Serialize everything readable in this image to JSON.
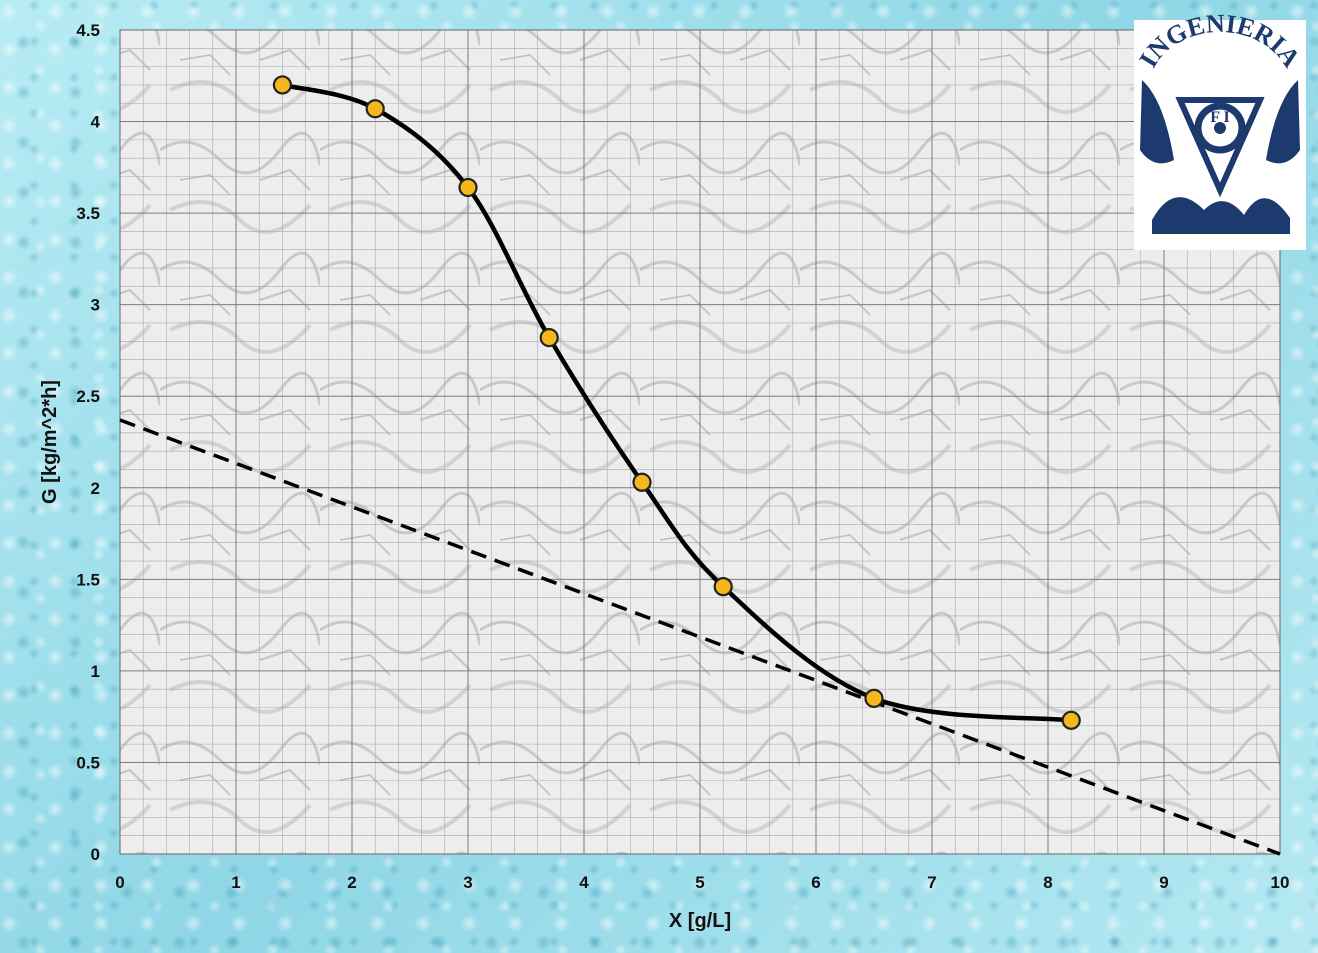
{
  "chart_data": {
    "type": "line",
    "xlabel": "X [g/L]",
    "ylabel": "G [kg/m^2*h]",
    "xlim": [
      0,
      10
    ],
    "ylim": [
      0,
      4.5
    ],
    "x_ticks": [
      0,
      1,
      2,
      3,
      4,
      5,
      6,
      7,
      8,
      9,
      10
    ],
    "y_ticks": [
      0,
      0.5,
      1,
      1.5,
      2,
      2.5,
      3,
      3.5,
      4,
      4.5
    ],
    "x_tick_labels": [
      "0",
      "1",
      "2",
      "3",
      "4",
      "5",
      "6",
      "7",
      "8",
      "9",
      "10"
    ],
    "y_tick_labels": [
      "0",
      "0.5",
      "1",
      "1.5",
      "2",
      "2.5",
      "3",
      "3.5",
      "4",
      "4.5"
    ],
    "grid": true,
    "series": [
      {
        "style": "smooth line with markers",
        "color": "#000000",
        "marker_color": "#f5b81c",
        "x": [
          1.4,
          2.2,
          3.0,
          3.7,
          4.5,
          5.2,
          6.5,
          8.2
        ],
        "y": [
          4.2,
          4.07,
          3.64,
          2.82,
          2.03,
          1.46,
          0.85,
          0.73
        ]
      },
      {
        "style": "dashed line",
        "color": "#000000",
        "x": [
          0,
          10
        ],
        "y": [
          2.37,
          0.0
        ]
      }
    ]
  },
  "logo": {
    "text": "INGENIERIA",
    "center_text": "F I",
    "colors": {
      "primary": "#1d3a6e",
      "background": "#ffffff"
    }
  }
}
